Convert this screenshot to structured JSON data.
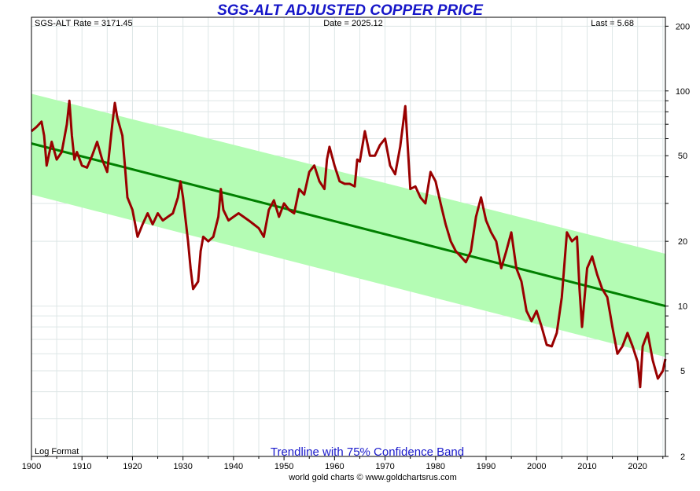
{
  "chart_data": {
    "type": "line",
    "title": "SGS-ALT ADJUSTED COPPER PRICE",
    "header": {
      "rate": "SGS-ALT Rate = 3171.45",
      "date": "Date = 2025.12",
      "last": "Last = 5.68"
    },
    "format_label": "Log Format",
    "subtitle": "Trendline with 75% Confidence Band",
    "footer": "world gold charts © www.goldchartsrus.com",
    "xlim": [
      1900,
      2025.5
    ],
    "ylim": [
      2,
      220
    ],
    "yscale": "log",
    "x_ticks": [
      1900,
      1910,
      1920,
      1930,
      1940,
      1950,
      1960,
      1970,
      1980,
      1990,
      2000,
      2010,
      2020
    ],
    "y_ticks": [
      200,
      100,
      50,
      20,
      10,
      5,
      2
    ],
    "trendline": {
      "start": [
        1900,
        57
      ],
      "end": [
        2025.5,
        10
      ]
    },
    "band": {
      "upper_start": 97,
      "upper_end": 17.5,
      "lower_start": 33,
      "lower_end": 5.8
    },
    "colors": {
      "band": "#b4fcb4",
      "trend": "#008000",
      "price": "#990000",
      "title": "#1616c8",
      "subtitle": "#1a1acc",
      "grid": "#dde6e6"
    },
    "series": [
      {
        "name": "Adjusted Copper Price",
        "points": [
          [
            1900,
            65
          ],
          [
            1901,
            68
          ],
          [
            1902,
            72
          ],
          [
            1902.5,
            62
          ],
          [
            1903,
            45
          ],
          [
            1904,
            58
          ],
          [
            1905,
            48
          ],
          [
            1906,
            52
          ],
          [
            1907,
            70
          ],
          [
            1907.5,
            90
          ],
          [
            1908,
            62
          ],
          [
            1908.5,
            48
          ],
          [
            1909,
            52
          ],
          [
            1910,
            45
          ],
          [
            1911,
            44
          ],
          [
            1912,
            50
          ],
          [
            1913,
            58
          ],
          [
            1914,
            48
          ],
          [
            1915,
            42
          ],
          [
            1916,
            70
          ],
          [
            1916.5,
            88
          ],
          [
            1917,
            75
          ],
          [
            1918,
            62
          ],
          [
            1918.5,
            45
          ],
          [
            1919,
            32
          ],
          [
            1920,
            28
          ],
          [
            1921,
            21
          ],
          [
            1922,
            24
          ],
          [
            1923,
            27
          ],
          [
            1924,
            24
          ],
          [
            1925,
            27
          ],
          [
            1926,
            25
          ],
          [
            1927,
            26
          ],
          [
            1928,
            27
          ],
          [
            1929,
            32
          ],
          [
            1929.5,
            38
          ],
          [
            1930,
            32
          ],
          [
            1931,
            20
          ],
          [
            1931.5,
            15
          ],
          [
            1932,
            12
          ],
          [
            1933,
            13
          ],
          [
            1933.5,
            18
          ],
          [
            1934,
            21
          ],
          [
            1935,
            20
          ],
          [
            1936,
            21
          ],
          [
            1937,
            26
          ],
          [
            1937.5,
            35
          ],
          [
            1938,
            28
          ],
          [
            1939,
            25
          ],
          [
            1940,
            26
          ],
          [
            1941,
            27
          ],
          [
            1942,
            26
          ],
          [
            1943,
            25
          ],
          [
            1944,
            24
          ],
          [
            1945,
            23
          ],
          [
            1946,
            21
          ],
          [
            1947,
            28
          ],
          [
            1948,
            31
          ],
          [
            1949,
            26
          ],
          [
            1950,
            30
          ],
          [
            1951,
            28
          ],
          [
            1952,
            27
          ],
          [
            1953,
            35
          ],
          [
            1954,
            33
          ],
          [
            1955,
            42
          ],
          [
            1956,
            45
          ],
          [
            1957,
            38
          ],
          [
            1958,
            35
          ],
          [
            1958.5,
            48
          ],
          [
            1959,
            55
          ],
          [
            1960,
            45
          ],
          [
            1961,
            38
          ],
          [
            1962,
            37
          ],
          [
            1963,
            37
          ],
          [
            1964,
            36
          ],
          [
            1964.5,
            48
          ],
          [
            1965,
            47
          ],
          [
            1966,
            65
          ],
          [
            1967,
            50
          ],
          [
            1968,
            50
          ],
          [
            1969,
            56
          ],
          [
            1970,
            60
          ],
          [
            1971,
            45
          ],
          [
            1972,
            41
          ],
          [
            1973,
            55
          ],
          [
            1974,
            85
          ],
          [
            1975,
            35
          ],
          [
            1976,
            36
          ],
          [
            1977,
            32
          ],
          [
            1978,
            30
          ],
          [
            1979,
            42
          ],
          [
            1980,
            38
          ],
          [
            1981,
            30
          ],
          [
            1982,
            24
          ],
          [
            1983,
            20
          ],
          [
            1984,
            18
          ],
          [
            1985,
            17
          ],
          [
            1986,
            16
          ],
          [
            1987,
            18
          ],
          [
            1988,
            26
          ],
          [
            1989,
            32
          ],
          [
            1990,
            25
          ],
          [
            1991,
            22
          ],
          [
            1992,
            20
          ],
          [
            1993,
            15
          ],
          [
            1994,
            18
          ],
          [
            1995,
            22
          ],
          [
            1996,
            15
          ],
          [
            1997,
            13
          ],
          [
            1998,
            9.5
          ],
          [
            1999,
            8.5
          ],
          [
            2000,
            9.5
          ],
          [
            2001,
            8
          ],
          [
            2002,
            6.6
          ],
          [
            2003,
            6.5
          ],
          [
            2004,
            7.5
          ],
          [
            2005,
            11
          ],
          [
            2006,
            22
          ],
          [
            2007,
            20
          ],
          [
            2008,
            21
          ],
          [
            2008.5,
            12
          ],
          [
            2009,
            8
          ],
          [
            2010,
            15
          ],
          [
            2011,
            17
          ],
          [
            2012,
            14
          ],
          [
            2013,
            12
          ],
          [
            2014,
            11
          ],
          [
            2015,
            8
          ],
          [
            2016,
            6
          ],
          [
            2017,
            6.5
          ],
          [
            2018,
            7.5
          ],
          [
            2019,
            6.5
          ],
          [
            2020,
            5.5
          ],
          [
            2020.5,
            4.2
          ],
          [
            2021,
            6.5
          ],
          [
            2022,
            7.5
          ],
          [
            2023,
            5.6
          ],
          [
            2024,
            4.6
          ],
          [
            2025,
            5
          ],
          [
            2025.5,
            5.68
          ]
        ]
      }
    ]
  }
}
